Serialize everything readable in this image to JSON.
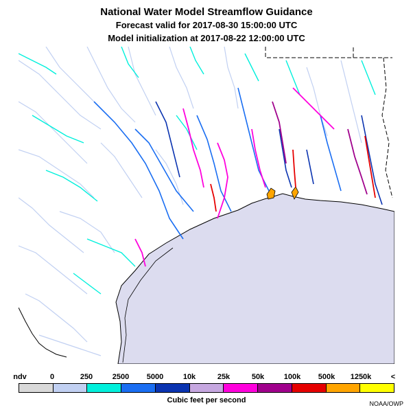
{
  "title": {
    "line1": "National Water Model Streamflow Guidance",
    "line2": "Forecast valid for 2017-08-30 15:00:00 UTC",
    "line3": "Model initialization at 2017-08-22 12:00:00 UTC"
  },
  "legend": {
    "labels": [
      "ndv",
      "0",
      "250",
      "2500",
      "5000",
      "10k",
      "25k",
      "50k",
      "100k",
      "500k",
      "1250k",
      "<"
    ],
    "colors": [
      "#d9d9d9",
      "#c1d0f2",
      "#00f0dc",
      "#1a6ef2",
      "#0a33b0",
      "#c6a7e0",
      "#ff00dd",
      "#a0008c",
      "#e60000",
      "#ffa500",
      "#ffff00"
    ],
    "units": "Cubic feet per second"
  },
  "credit": "NOAA/OWP",
  "map": {
    "water_color": "#dcdcef",
    "land_color": "#ffffff"
  }
}
